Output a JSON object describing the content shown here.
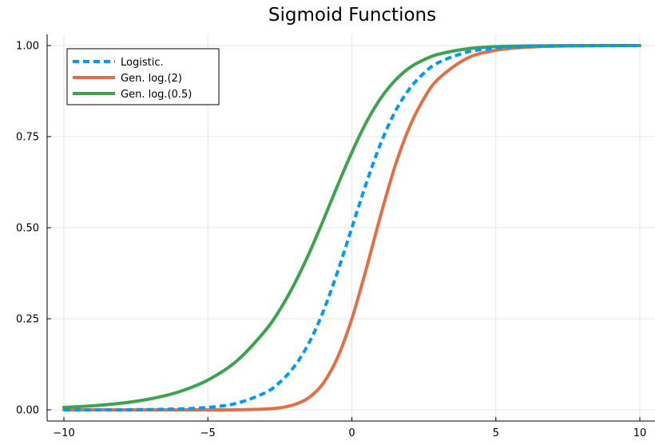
{
  "chart_data": {
    "type": "line",
    "title": "Sigmoid Functions",
    "xlabel": "",
    "ylabel": "",
    "xlim": [
      -10,
      10
    ],
    "ylim": [
      0,
      1
    ],
    "x_ticks": [
      -10,
      -5,
      0,
      5,
      10
    ],
    "x_tick_labels": [
      "−10",
      "−5",
      "0",
      "5",
      "10"
    ],
    "y_ticks": [
      0,
      0.25,
      0.5,
      0.75,
      1.0
    ],
    "y_tick_labels": [
      "0.00",
      "0.25",
      "0.50",
      "0.75",
      "1.00"
    ],
    "grid": true,
    "legend_position": "top-left",
    "x": [
      -10,
      -9,
      -8,
      -7,
      -6,
      -5,
      -4,
      -3,
      -2.5,
      -2,
      -1.5,
      -1,
      -0.5,
      0,
      0.5,
      1,
      1.5,
      2,
      2.5,
      3,
      4,
      5,
      6,
      7,
      8,
      9,
      10
    ],
    "series": [
      {
        "name": "Logistic.",
        "color": "#009af9",
        "style": "dashed",
        "values": [
          4.54e-05,
          0.000123,
          0.000335,
          0.000911,
          0.00247,
          0.00669,
          0.018,
          0.0474,
          0.0759,
          0.119,
          0.182,
          0.269,
          0.378,
          0.5,
          0.622,
          0.731,
          0.818,
          0.881,
          0.924,
          0.953,
          0.982,
          0.993,
          0.9975,
          0.9991,
          0.9997,
          0.9999,
          1.0
        ]
      },
      {
        "name": "Gen. log.(2)",
        "color": "#e26f46",
        "style": "solid",
        "values": [
          2e-09,
          1.5e-08,
          1.1e-07,
          8.3e-07,
          6.1e-06,
          4.48e-05,
          0.000324,
          0.00225,
          0.00576,
          0.0142,
          0.0331,
          0.0723,
          0.143,
          0.25,
          0.387,
          0.534,
          0.669,
          0.776,
          0.854,
          0.908,
          0.965,
          0.987,
          0.995,
          0.9982,
          0.9993,
          0.9998,
          1.0
        ]
      },
      {
        "name": "Gen. log.(0.5)",
        "color": "#3da44d",
        "style": "solid",
        "values": [
          0.00674,
          0.0111,
          0.0183,
          0.0302,
          0.0497,
          0.0818,
          0.134,
          0.218,
          0.275,
          0.345,
          0.427,
          0.519,
          0.615,
          0.707,
          0.789,
          0.855,
          0.904,
          0.939,
          0.961,
          0.976,
          0.991,
          0.997,
          0.9988,
          0.9995,
          0.9998,
          0.9999,
          1.0
        ]
      }
    ]
  }
}
